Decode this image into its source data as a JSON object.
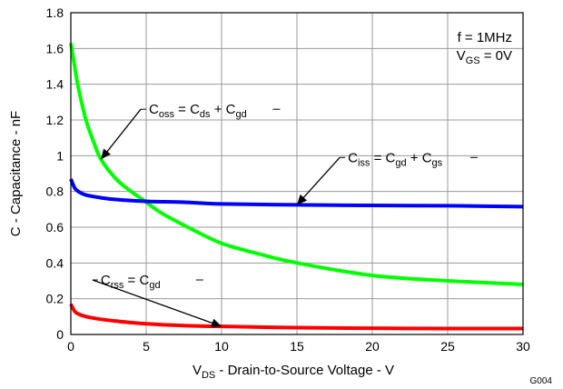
{
  "figure_id": "G004",
  "chart_data": {
    "type": "line",
    "ylabel": "C - Capacitance - nF",
    "xlabel": {
      "main": "V",
      "sub": "DS",
      "rest": " - Drain-to-Source Voltage - V"
    },
    "xlim": [
      0,
      30
    ],
    "ylim": [
      0,
      1.8
    ],
    "xticks": [
      0,
      5,
      10,
      15,
      20,
      25,
      30
    ],
    "yticks": [
      0,
      0.2,
      0.4,
      0.6,
      0.8,
      1,
      1.2,
      1.4,
      1.6,
      1.8
    ],
    "grid": true,
    "conditions": [
      {
        "parts": [
          {
            "t": "f = 1MHz"
          }
        ]
      },
      {
        "parts": [
          {
            "t": "V"
          },
          {
            "t": "GS",
            "sub": true
          },
          {
            "t": " = 0V"
          }
        ]
      }
    ],
    "series": [
      {
        "name": "Coss = Cds + Cgd",
        "color": "#00ff00",
        "x": [
          0,
          0.25,
          0.5,
          1,
          1.5,
          2,
          3,
          4,
          5,
          6,
          8,
          10,
          12.5,
          15,
          20,
          25,
          30
        ],
        "y": [
          1.63,
          1.5,
          1.38,
          1.2,
          1.08,
          0.98,
          0.87,
          0.8,
          0.74,
          0.68,
          0.59,
          0.51,
          0.45,
          0.4,
          0.33,
          0.3,
          0.28
        ]
      },
      {
        "name": "Ciss = Cgd + Cgs",
        "color": "#0000ff",
        "x": [
          0,
          0.25,
          0.5,
          1,
          2,
          3,
          5,
          7.5,
          10,
          15,
          20,
          25,
          30
        ],
        "y": [
          0.87,
          0.82,
          0.8,
          0.78,
          0.765,
          0.755,
          0.745,
          0.74,
          0.73,
          0.725,
          0.722,
          0.72,
          0.715
        ]
      },
      {
        "name": "Crss = Cgd",
        "color": "#ff0000",
        "x": [
          0,
          0.25,
          0.5,
          1,
          2,
          3,
          5,
          7.5,
          10,
          15,
          20,
          25,
          30
        ],
        "y": [
          0.17,
          0.13,
          0.115,
          0.1,
          0.085,
          0.075,
          0.06,
          0.05,
          0.045,
          0.038,
          0.035,
          0.033,
          0.033
        ]
      }
    ],
    "annotations": [
      {
        "parts": [
          {
            "t": "C"
          },
          {
            "t": "oss",
            "sub": true
          },
          {
            "t": " = C"
          },
          {
            "t": "ds",
            "sub": true
          },
          {
            "t": " + C"
          },
          {
            "t": "gd",
            "sub": true
          }
        ],
        "point": [
          2,
          0.98
        ],
        "text_at": [
          5,
          1.26
        ],
        "leader_end": [
          13.4,
          1.26
        ]
      },
      {
        "parts": [
          {
            "t": "C"
          },
          {
            "t": "iss",
            "sub": true
          },
          {
            "t": " = C"
          },
          {
            "t": "gd",
            "sub": true
          },
          {
            "t": " + C"
          },
          {
            "t": "gs",
            "sub": true
          }
        ],
        "point": [
          15,
          0.725
        ],
        "text_at": [
          18.2,
          0.99
        ],
        "leader_end": [
          26.5,
          0.99
        ]
      },
      {
        "parts": [
          {
            "t": "C"
          },
          {
            "t": "rss",
            "sub": true
          },
          {
            "t": " = C"
          },
          {
            "t": "gd",
            "sub": true
          }
        ],
        "point": [
          10,
          0.045
        ],
        "text_at": [
          1.8,
          0.305
        ],
        "leader_end": [
          8.3,
          0.305
        ]
      }
    ]
  }
}
